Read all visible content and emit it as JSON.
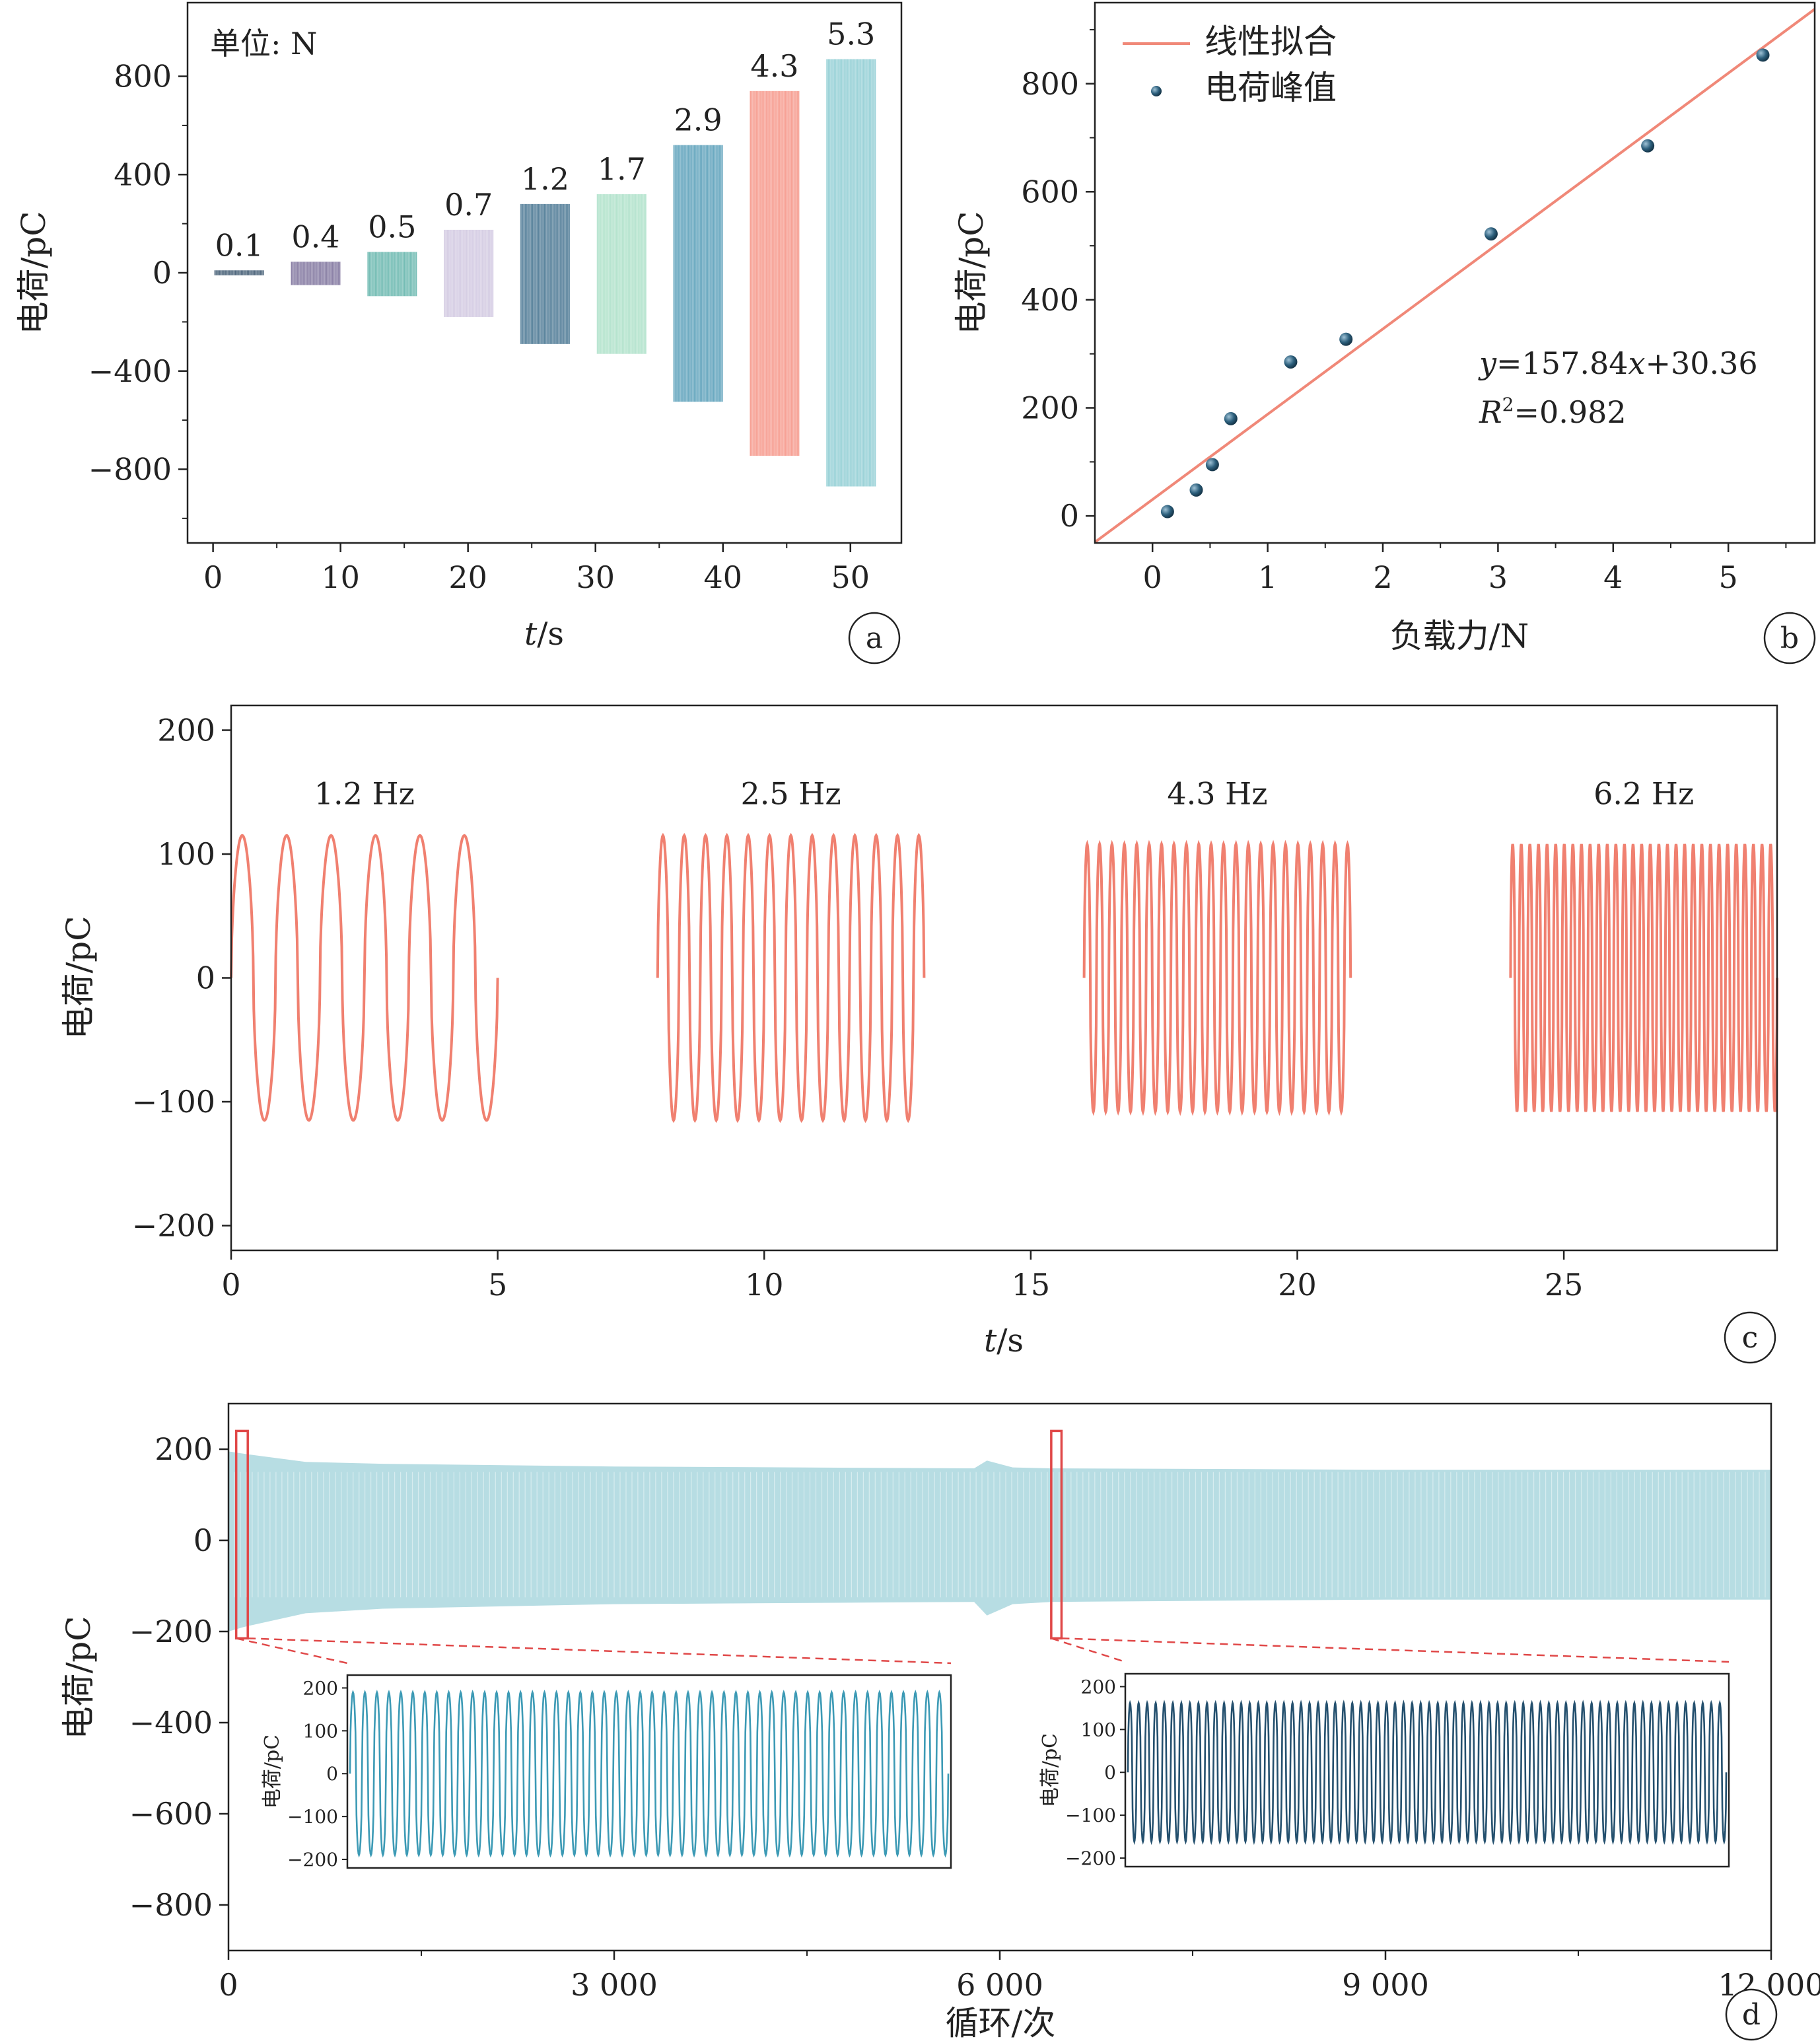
{
  "chart_data": [
    {
      "id": "a",
      "type": "bar",
      "panel_label": "a",
      "annotation": "单位: N",
      "xlabel_italic": "t",
      "xlabel_unit": "/s",
      "ylabel": "电荷/pC",
      "xlim": [
        -2,
        54
      ],
      "ylim": [
        -1100,
        1100
      ],
      "xticks": [
        "0",
        "10",
        "20",
        "30",
        "40",
        "50"
      ],
      "xtick_values": [
        0,
        10,
        20,
        30,
        40,
        50
      ],
      "yticks": [
        "800",
        "400",
        "0",
        "−400",
        "−800"
      ],
      "ytick_values": [
        800,
        400,
        0,
        -400,
        -800
      ],
      "segments": [
        {
          "label": "0.1",
          "t_start": 0.1,
          "t_end": 4,
          "max": 10,
          "min": -10,
          "color": "#1e3d59"
        },
        {
          "label": "0.4",
          "t_start": 6.1,
          "t_end": 10,
          "max": 45,
          "min": -50,
          "color": "#6a5d8d"
        },
        {
          "label": "0.5",
          "t_start": 12.1,
          "t_end": 16,
          "max": 85,
          "min": -95,
          "color": "#4daaa0"
        },
        {
          "label": "0.7",
          "t_start": 18.1,
          "t_end": 22,
          "max": 175,
          "min": -180,
          "color": "#c9bedc"
        },
        {
          "label": "1.2",
          "t_start": 24.1,
          "t_end": 28,
          "max": 280,
          "min": -290,
          "color": "#2a5f80"
        },
        {
          "label": "1.7",
          "t_start": 30.1,
          "t_end": 34,
          "max": 320,
          "min": -330,
          "color": "#9fdcc0"
        },
        {
          "label": "2.9",
          "t_start": 36.1,
          "t_end": 40,
          "max": 520,
          "min": -525,
          "color": "#3e8fae"
        },
        {
          "label": "4.3",
          "t_start": 42.1,
          "t_end": 46,
          "max": 740,
          "min": -745,
          "color": "#f58575"
        },
        {
          "label": "5.3",
          "t_start": 48.1,
          "t_end": 52,
          "max": 870,
          "min": -870,
          "color": "#7dc6cc"
        }
      ]
    },
    {
      "id": "b",
      "type": "scatter",
      "panel_label": "b",
      "xlabel": "负载力/N",
      "ylabel": "电荷/pC",
      "xlim": [
        -0.5,
        5.75
      ],
      "ylim": [
        -50,
        950
      ],
      "xticks": [
        "0",
        "1",
        "2",
        "3",
        "4",
        "5"
      ],
      "xtick_values": [
        0,
        1,
        2,
        3,
        4,
        5
      ],
      "yticks": [
        "0",
        "200",
        "400",
        "600",
        "800"
      ],
      "ytick_values": [
        0,
        200,
        400,
        600,
        800
      ],
      "legend": [
        "线性拟合",
        "电荷峰值"
      ],
      "legend_position": "top-left",
      "fit": {
        "slope": 157.84,
        "intercept": 30.36,
        "color": "#f08878"
      },
      "equation": {
        "y": "y",
        "eq": "=157.84",
        "x": "x",
        "rest": "+30.36"
      },
      "r2": {
        "r": "R",
        "sup": "2",
        "rest": "=0.982"
      },
      "points": {
        "x": [
          0.13,
          0.38,
          0.52,
          0.68,
          1.2,
          1.68,
          2.94,
          4.3,
          5.3
        ],
        "y": [
          8,
          48,
          95,
          180,
          285,
          327,
          522,
          685,
          853
        ],
        "color": "#2c5f7c"
      }
    },
    {
      "id": "c",
      "type": "line",
      "panel_label": "c",
      "xlabel_italic": "t",
      "xlabel_unit": "/s",
      "ylabel": "电荷/pC",
      "xlim": [
        0,
        29
      ],
      "ylim": [
        -220,
        220
      ],
      "xticks": [
        "0",
        "5",
        "10",
        "15",
        "20",
        "25"
      ],
      "xtick_values": [
        0,
        5,
        10,
        15,
        20,
        25
      ],
      "yticks": [
        "200",
        "100",
        "0",
        "−100",
        "−200"
      ],
      "ytick_values": [
        200,
        100,
        0,
        -100,
        -200
      ],
      "color": "#f08070",
      "segments": [
        {
          "label": "1.2 Hz",
          "t_start": 0,
          "t_end": 5,
          "freq": 1.2,
          "amplitude": 115
        },
        {
          "label": "2.5 Hz",
          "t_start": 8,
          "t_end": 13,
          "freq": 2.5,
          "amplitude": 115
        },
        {
          "label": "4.3 Hz",
          "t_start": 16,
          "t_end": 21,
          "freq": 4.3,
          "amplitude": 108
        },
        {
          "label": "6.2 Hz",
          "t_start": 24,
          "t_end": 29,
          "freq": 6.2,
          "amplitude": 108
        }
      ]
    },
    {
      "id": "d",
      "type": "area",
      "panel_label": "d",
      "xlabel": "循环/次",
      "ylabel": "电荷/pC",
      "xlim": [
        0,
        12000
      ],
      "ylim": [
        -900,
        300
      ],
      "xticks": [
        "0",
        "3 000",
        "6 000",
        "9 000",
        "12 000"
      ],
      "xtick_values": [
        0,
        3000,
        6000,
        9000,
        12000
      ],
      "yticks": [
        "200",
        "0",
        "−200",
        "−400",
        "−600",
        "−800"
      ],
      "ytick_values": [
        200,
        0,
        -200,
        -400,
        -600,
        -800
      ],
      "envelope_color": "#b7dde3",
      "envelope": {
        "x": [
          0,
          120,
          600,
          1200,
          3000,
          5800,
          5900,
          6100,
          6400,
          9000,
          12000
        ],
        "max": [
          195,
          190,
          172,
          168,
          162,
          158,
          175,
          160,
          158,
          155,
          155
        ],
        "min": [
          -200,
          -190,
          -160,
          -150,
          -140,
          -135,
          -165,
          -140,
          -135,
          -130,
          -130
        ]
      },
      "highlight_ranges": [
        [
          60,
          150
        ],
        [
          6400,
          6480
        ]
      ],
      "insets": [
        {
          "ylabel": "电荷/pC",
          "ylim": [
            -220,
            230
          ],
          "yticks": [
            "200",
            "100",
            "0",
            "−100",
            "−200"
          ],
          "ytick_values": [
            200,
            100,
            0,
            -100,
            -200
          ],
          "amplitude": 190,
          "cycles": 50,
          "color": "#3c9ab5"
        },
        {
          "ylabel": "电荷/pC",
          "ylim": [
            -220,
            230
          ],
          "yticks": [
            "200",
            "100",
            "0",
            "−100",
            "−200"
          ],
          "ytick_values": [
            200,
            100,
            0,
            -100,
            -200
          ],
          "amplitude": 162,
          "cycles": 70,
          "color": "#24506e"
        }
      ]
    }
  ]
}
